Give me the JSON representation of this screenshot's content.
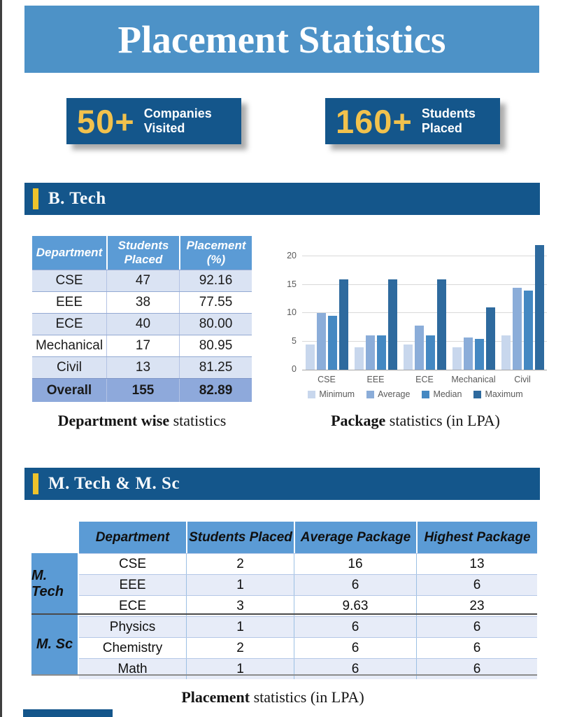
{
  "page": {
    "title": "Placement Statistics"
  },
  "stats": [
    {
      "value": "50+",
      "label_line1": "Companies",
      "label_line2": "Visited"
    },
    {
      "value": "160+",
      "label_line1": "Students",
      "label_line2": "Placed"
    }
  ],
  "btech": {
    "section_title": "B. Tech",
    "table": {
      "headers": [
        "Department",
        "Students\nPlaced",
        "Placement\n(%)"
      ],
      "rows": [
        [
          "CSE",
          "47",
          "92.16"
        ],
        [
          "EEE",
          "38",
          "77.55"
        ],
        [
          "ECE",
          "40",
          "80.00"
        ],
        [
          "Mechanical",
          "17",
          "80.95"
        ],
        [
          "Civil",
          "13",
          "81.25"
        ]
      ],
      "footer": [
        "Overall",
        "155",
        "82.89"
      ]
    },
    "table_caption_bold": "Department wise",
    "table_caption_rest": " statistics",
    "chart_caption_bold": "Package",
    "chart_caption_rest": " statistics (in LPA)"
  },
  "chart_data": {
    "type": "bar",
    "title": "Package statistics (in LPA)",
    "categories": [
      "CSE",
      "EEE",
      "ECE",
      "Mechanical",
      "Civil"
    ],
    "series": [
      {
        "name": "Minimum",
        "color": "#c8d7ed",
        "values": [
          4.5,
          4,
          4.5,
          4,
          6
        ]
      },
      {
        "name": "Average",
        "color": "#8badd9",
        "values": [
          10,
          6,
          7.75,
          5.75,
          14.5
        ]
      },
      {
        "name": "Median",
        "color": "#4488c2",
        "values": [
          9.5,
          6,
          6,
          5.5,
          14
        ]
      },
      {
        "name": "Maximum",
        "color": "#2e6a9e",
        "values": [
          16,
          16,
          16,
          11,
          22
        ]
      }
    ],
    "xlabel": "",
    "ylabel": "",
    "ylim": [
      0,
      22.5
    ],
    "yticks": [
      0,
      5,
      10,
      15,
      20
    ],
    "grid": true,
    "legend_position": "bottom"
  },
  "mtech": {
    "section_title": "M. Tech & M. Sc",
    "table": {
      "headers": [
        "Department",
        "Students Placed",
        "Average Package",
        "Highest Package"
      ],
      "groups": [
        {
          "label": "M. Tech",
          "rows": [
            [
              "CSE",
              "2",
              "16",
              "13"
            ],
            [
              "EEE",
              "1",
              "6",
              "6"
            ],
            [
              "ECE",
              "3",
              "9.63",
              "23"
            ]
          ]
        },
        {
          "label": "M. Sc",
          "rows": [
            [
              "Physics",
              "1",
              "6",
              "6"
            ],
            [
              "Chemistry",
              "2",
              "6",
              "6"
            ],
            [
              "Math",
              "1",
              "6",
              "6"
            ]
          ]
        }
      ]
    },
    "caption_bold": "Placement",
    "caption_rest": " statistics (in LPA)"
  },
  "colors": {
    "banner_blue": "#4d92c7",
    "panel_blue": "#14568b",
    "accent_gold": "#f2c24d",
    "table_header_blue": "#5b9bd5",
    "row_light_blue": "#dae3f3",
    "m_row_light_blue": "#e7ecf8",
    "overall_row_blue": "#8ea9db"
  }
}
